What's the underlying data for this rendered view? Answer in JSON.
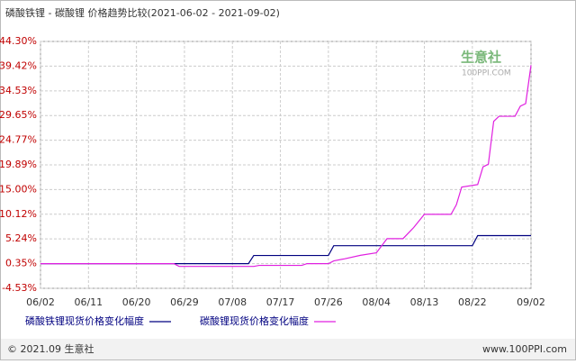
{
  "chart_data": {
    "type": "line",
    "title": "磷酸铁锂 - 碳酸锂 价格趋势比较(2021-06-02 - 2021-09-02)",
    "watermark": "生意社",
    "watermark_sub": "100PPI.COM",
    "footer_left": "© 2021.09 生意社",
    "footer_right": "www.100PPI.com",
    "xlim": [
      "06/02",
      "09/02"
    ],
    "xticks": [
      "06/02",
      "06/11",
      "06/20",
      "06/29",
      "07/08",
      "07/17",
      "07/26",
      "08/04",
      "08/13",
      "08/22",
      "09/02"
    ],
    "ylim": [
      -4.53,
      44.3
    ],
    "yticks": [
      {
        "value": -4.53,
        "label": "-4.53%"
      },
      {
        "value": 0.35,
        "label": "0.35%"
      },
      {
        "value": 5.24,
        "label": "5.24%"
      },
      {
        "value": 10.12,
        "label": "10.12%"
      },
      {
        "value": 15.0,
        "label": "15.00%"
      },
      {
        "value": 19.89,
        "label": "19.89%"
      },
      {
        "value": 24.77,
        "label": "24.77%"
      },
      {
        "value": 29.65,
        "label": "29.65%"
      },
      {
        "value": 34.53,
        "label": "34.53%"
      },
      {
        "value": 39.42,
        "label": "39.42%"
      },
      {
        "value": 44.3,
        "label": "44.30%"
      }
    ],
    "grid": true,
    "series": [
      {
        "name": "磷酸铁锂现货价格变化幅度",
        "color": "#000080",
        "x": [
          "06/02",
          "07/11",
          "07/12",
          "07/26",
          "07/27",
          "08/22",
          "08/23",
          "09/02"
        ],
        "values": [
          0.35,
          0.35,
          1.96,
          1.96,
          3.9,
          3.9,
          5.9,
          5.9
        ]
      },
      {
        "name": "碳酸锂现货价格变化幅度",
        "color": "#e020e0",
        "x": [
          "06/02",
          "06/27",
          "06/28",
          "07/12",
          "07/13",
          "07/21",
          "07/22",
          "07/26",
          "07/27",
          "07/29",
          "08/01",
          "08/04",
          "08/06",
          "08/09",
          "08/11",
          "08/13",
          "08/18",
          "08/19",
          "08/20",
          "08/23",
          "08/24",
          "08/25",
          "08/26",
          "08/27",
          "08/30",
          "08/31",
          "09/01",
          "09/02"
        ],
        "values": [
          0.35,
          0.35,
          -0.2,
          -0.2,
          0.0,
          0.0,
          0.35,
          0.35,
          0.9,
          1.3,
          2.0,
          2.5,
          5.3,
          5.3,
          7.5,
          10.1,
          10.1,
          12.0,
          15.5,
          16.0,
          19.5,
          20.0,
          28.5,
          29.5,
          29.5,
          31.5,
          32.0,
          39.6
        ]
      }
    ]
  }
}
